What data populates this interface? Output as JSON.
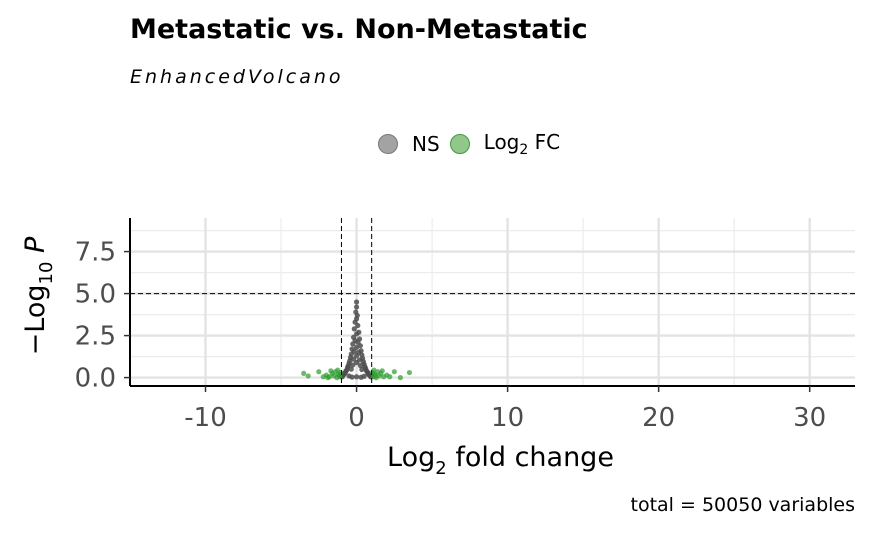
{
  "header": {
    "title": "Metastatic vs. Non-Metastatic",
    "subtitle": "EnhancedVolcano"
  },
  "legend": {
    "items": [
      {
        "label": "NS",
        "color": "#777777"
      },
      {
        "label_main": "Log",
        "label_sub": "2",
        "label_tail": " FC",
        "color": "#2e9b2e"
      }
    ]
  },
  "caption": "total = 50050 variables",
  "chart_data": {
    "type": "scatter",
    "title": "Metastatic vs. Non-Metastatic",
    "subtitle": "EnhancedVolcano",
    "xlabel": {
      "main": "Log",
      "sub": "2",
      "tail": " fold change"
    },
    "ylabel": {
      "main": "−Log",
      "sub": "10",
      "tail": " P"
    },
    "xlim": [
      -15,
      33
    ],
    "ylim": [
      -0.5,
      9.5
    ],
    "x_ticks": [
      -10,
      0,
      10,
      20,
      30
    ],
    "x_tick_labels": [
      "-10",
      "0",
      "10",
      "20",
      "30"
    ],
    "y_ticks": [
      0.0,
      2.5,
      5.0,
      7.5
    ],
    "y_tick_labels": [
      "0.0",
      "2.5",
      "5.0",
      "7.5"
    ],
    "fc_cutoff": [
      -1,
      1
    ],
    "p_cutoff_line": 5.0,
    "grid": true,
    "legend_position": "top",
    "total_variables": 50050,
    "series": [
      {
        "name": "NS",
        "color": "#4d4d4d",
        "points": [
          [
            0,
            4.5
          ],
          [
            0,
            4.2
          ],
          [
            -0.05,
            3.9
          ],
          [
            0.05,
            3.7
          ],
          [
            0,
            3.5
          ],
          [
            -0.1,
            3.3
          ],
          [
            0.08,
            3.1
          ],
          [
            -0.15,
            2.9
          ],
          [
            0.15,
            2.7
          ],
          [
            0,
            2.6
          ],
          [
            -0.2,
            2.4
          ],
          [
            0.2,
            2.3
          ],
          [
            -0.1,
            2.2
          ],
          [
            0.1,
            2.1
          ],
          [
            -0.25,
            2.0
          ],
          [
            0.25,
            1.9
          ],
          [
            0,
            1.8
          ],
          [
            -0.3,
            1.7
          ],
          [
            0.3,
            1.6
          ],
          [
            -0.15,
            1.55
          ],
          [
            0.15,
            1.5
          ],
          [
            -0.35,
            1.4
          ],
          [
            0.35,
            1.35
          ],
          [
            0,
            1.3
          ],
          [
            -0.4,
            1.2
          ],
          [
            0.4,
            1.15
          ],
          [
            -0.2,
            1.1
          ],
          [
            0.2,
            1.05
          ],
          [
            -0.45,
            1.0
          ],
          [
            0.45,
            0.95
          ],
          [
            0,
            0.9
          ],
          [
            -0.5,
            0.85
          ],
          [
            0.5,
            0.8
          ],
          [
            -0.25,
            0.75
          ],
          [
            0.25,
            0.72
          ],
          [
            -0.55,
            0.7
          ],
          [
            0.55,
            0.65
          ],
          [
            -0.6,
            0.6
          ],
          [
            0.6,
            0.55
          ],
          [
            -0.35,
            0.5
          ],
          [
            0.35,
            0.48
          ],
          [
            -0.65,
            0.45
          ],
          [
            0.65,
            0.42
          ],
          [
            -0.7,
            0.4
          ],
          [
            0.7,
            0.35
          ],
          [
            -0.75,
            0.3
          ],
          [
            0.75,
            0.28
          ],
          [
            -0.8,
            0.25
          ],
          [
            0.8,
            0.2
          ],
          [
            -0.85,
            0.18
          ],
          [
            0.85,
            0.15
          ],
          [
            -0.9,
            0.12
          ],
          [
            0.9,
            0.1
          ],
          [
            -0.5,
            0.1
          ],
          [
            0.5,
            0.08
          ],
          [
            0,
            0.05
          ],
          [
            -0.3,
            0.03
          ],
          [
            0.3,
            0.02
          ],
          [
            -0.95,
            0.05
          ],
          [
            0.95,
            0.04
          ]
        ]
      },
      {
        "name": "Log2 FC",
        "color": "#2e9b2e",
        "points": [
          [
            -3.5,
            0.25
          ],
          [
            -3.2,
            0.1
          ],
          [
            -2.5,
            0.35
          ],
          [
            -2.0,
            0.15
          ],
          [
            -1.8,
            0.05
          ],
          [
            -1.6,
            0.25
          ],
          [
            -1.5,
            0.1
          ],
          [
            -1.4,
            0.35
          ],
          [
            -1.3,
            0.0
          ],
          [
            -1.2,
            0.2
          ],
          [
            -1.1,
            0.05
          ],
          [
            -1.05,
            0.3
          ],
          [
            -1.9,
            0.0
          ],
          [
            -2.2,
            0.05
          ],
          [
            -1.7,
            0.4
          ],
          [
            -1.25,
            0.45
          ],
          [
            -1.15,
            0.12
          ],
          [
            1.05,
            0.3
          ],
          [
            1.1,
            0.05
          ],
          [
            1.2,
            0.2
          ],
          [
            1.3,
            0.0
          ],
          [
            1.4,
            0.35
          ],
          [
            1.5,
            0.1
          ],
          [
            1.6,
            0.25
          ],
          [
            1.8,
            0.05
          ],
          [
            2.0,
            0.15
          ],
          [
            2.5,
            0.35
          ],
          [
            2.9,
            0.0
          ],
          [
            3.5,
            0.3
          ],
          [
            1.15,
            0.45
          ],
          [
            1.25,
            0.12
          ],
          [
            1.7,
            0.4
          ],
          [
            2.2,
            0.05
          ]
        ]
      }
    ]
  }
}
